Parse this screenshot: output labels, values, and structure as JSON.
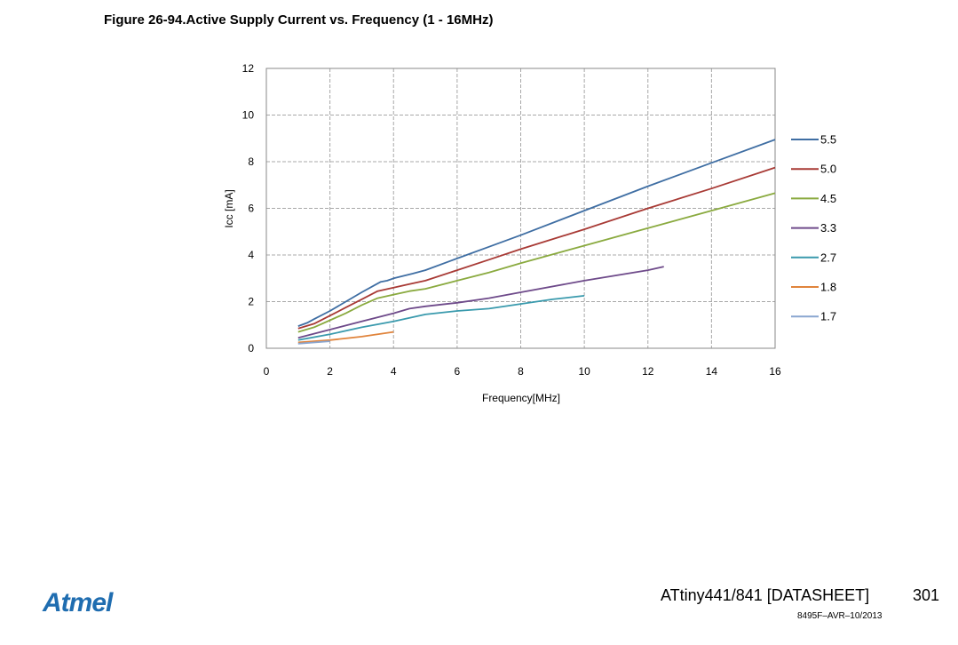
{
  "figure": {
    "title": "Figure 26-94.Active Supply Current vs. Frequency (1 - 16MHz)"
  },
  "chart_data": {
    "type": "line",
    "title": "",
    "xlabel": "Frequency[MHz]",
    "ylabel": "Icc [mA]",
    "xlim": [
      0,
      16
    ],
    "ylim": [
      0,
      12
    ],
    "xticks": [
      0,
      2,
      4,
      6,
      8,
      10,
      12,
      14,
      16
    ],
    "yticks": [
      0,
      2,
      4,
      6,
      8,
      10,
      12
    ],
    "grid": true,
    "legend_position": "right",
    "series": [
      {
        "name": "5.5",
        "color": "#3f6ea3",
        "x": [
          1,
          1.3,
          1.5,
          2,
          2.5,
          3,
          3.4,
          3.6,
          3.8,
          4,
          4.3,
          4.6,
          5,
          6,
          7,
          8,
          10,
          12,
          14,
          16
        ],
        "y": [
          0.95,
          1.1,
          1.25,
          1.6,
          2.0,
          2.4,
          2.7,
          2.85,
          2.9,
          3.0,
          3.1,
          3.2,
          3.35,
          3.85,
          4.35,
          4.85,
          5.9,
          6.95,
          7.95,
          8.95
        ]
      },
      {
        "name": "5.0",
        "color": "#a83a35",
        "x": [
          1,
          1.5,
          2,
          2.5,
          3,
          3.5,
          4,
          4.5,
          5,
          6,
          7,
          8,
          10,
          12,
          14,
          16
        ],
        "y": [
          0.85,
          1.05,
          1.4,
          1.75,
          2.1,
          2.45,
          2.6,
          2.75,
          2.9,
          3.35,
          3.8,
          4.25,
          5.1,
          6.0,
          6.85,
          7.75
        ]
      },
      {
        "name": "4.5",
        "color": "#8aaa3f",
        "x": [
          1,
          1.5,
          2,
          2.5,
          3,
          3.5,
          4,
          4.5,
          5,
          6,
          7,
          8,
          10,
          12,
          14,
          16
        ],
        "y": [
          0.7,
          0.9,
          1.2,
          1.5,
          1.85,
          2.15,
          2.3,
          2.45,
          2.55,
          2.9,
          3.25,
          3.65,
          4.4,
          5.15,
          5.9,
          6.65
        ]
      },
      {
        "name": "3.3",
        "color": "#6e4a8a",
        "x": [
          1,
          2,
          3,
          4,
          4.5,
          5,
          6,
          7,
          8,
          10,
          12,
          12.5
        ],
        "y": [
          0.45,
          0.8,
          1.15,
          1.5,
          1.7,
          1.8,
          1.95,
          2.15,
          2.4,
          2.9,
          3.35,
          3.5
        ]
      },
      {
        "name": "2.7",
        "color": "#3a9aad",
        "x": [
          1,
          2,
          3,
          4,
          5,
          6,
          7,
          8,
          9,
          10
        ],
        "y": [
          0.35,
          0.6,
          0.9,
          1.15,
          1.45,
          1.6,
          1.7,
          1.9,
          2.1,
          2.25
        ]
      },
      {
        "name": "1.8",
        "color": "#e0843c",
        "x": [
          1,
          2,
          3,
          4
        ],
        "y": [
          0.25,
          0.35,
          0.5,
          0.7
        ]
      },
      {
        "name": "1.7",
        "color": "#8aa6d0",
        "x": [
          1,
          2
        ],
        "y": [
          0.2,
          0.3
        ]
      }
    ]
  },
  "footer": {
    "logo": "Atmel",
    "doc_title": "ATtiny441/841 [DATASHEET]",
    "page_number": "301",
    "doc_code": "8495F–AVR–10/2013"
  }
}
